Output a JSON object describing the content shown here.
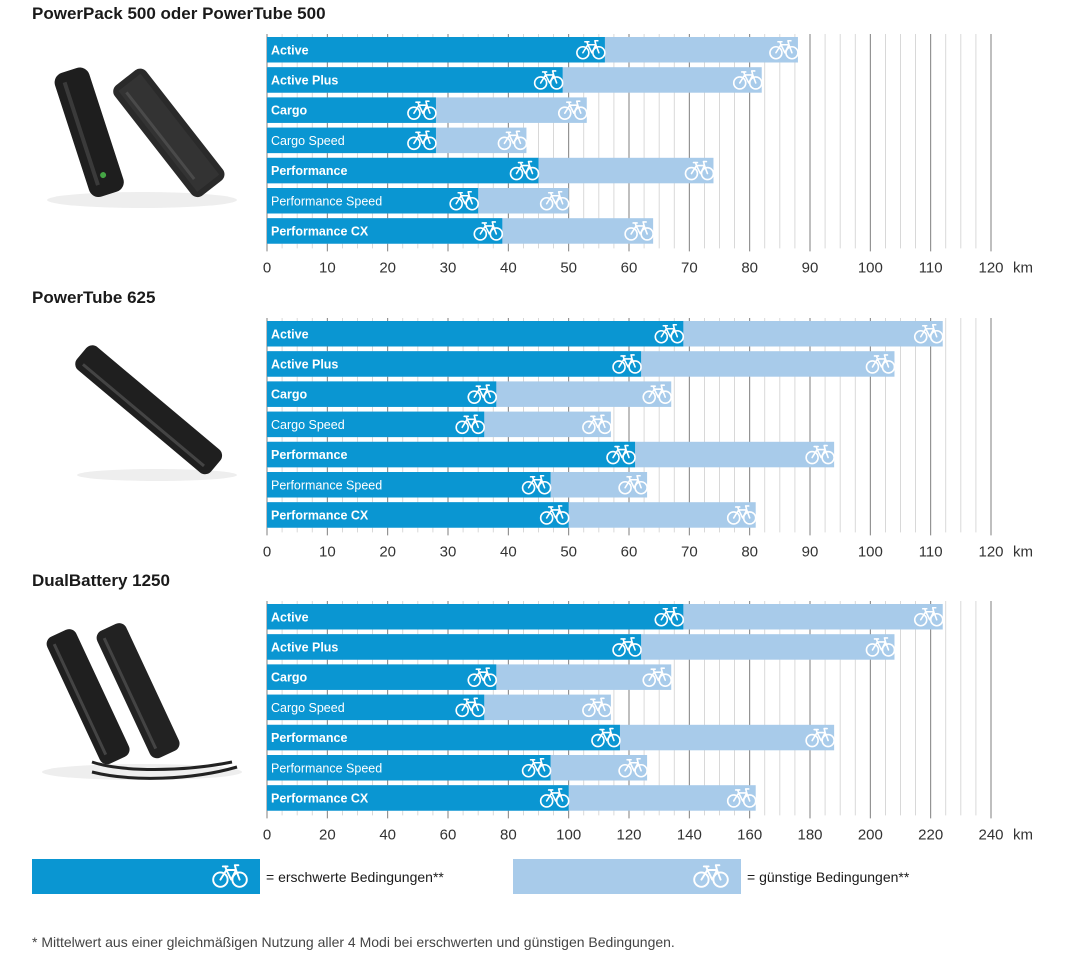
{
  "colors": {
    "hard": "#0a96d2",
    "easy": "#a8cbea",
    "grid": "#cfcfcf",
    "axis": "#7f7f7f"
  },
  "legend": {
    "hard_label": "= erschwerte Bedingungen**",
    "easy_label": "= günstige Bedingungen**",
    "icon": "bicycle-icon"
  },
  "footnote": "* Mittelwert aus einer gleichmäßigen Nutzung aller 4 Modi bei erschwerten und günstigen Bedingungen.",
  "chart_data": [
    {
      "type": "bar",
      "title": "PowerPack 500 oder PowerTube 500",
      "categories": [
        "Active",
        "Active Plus",
        "Cargo",
        "Cargo Speed",
        "Performance",
        "Performance Speed",
        "Performance CX"
      ],
      "category_bold": [
        true,
        true,
        true,
        false,
        true,
        false,
        true
      ],
      "series": [
        {
          "name": "erschwerte Bedingungen**",
          "values": [
            56,
            49,
            28,
            28,
            45,
            35,
            39
          ]
        },
        {
          "name": "günstige Bedingungen**",
          "values": [
            88,
            82,
            53,
            43,
            74,
            50,
            64
          ]
        }
      ],
      "xlim": [
        0,
        120
      ],
      "xticks": [
        0,
        10,
        20,
        30,
        40,
        50,
        60,
        70,
        80,
        90,
        100,
        110,
        120
      ],
      "unit": "km"
    },
    {
      "type": "bar",
      "title": "PowerTube 625",
      "categories": [
        "Active",
        "Active Plus",
        "Cargo",
        "Cargo Speed",
        "Performance",
        "Performance Speed",
        "Performance CX"
      ],
      "category_bold": [
        true,
        true,
        true,
        false,
        true,
        false,
        true
      ],
      "series": [
        {
          "name": "erschwerte Bedingungen**",
          "values": [
            69,
            62,
            38,
            36,
            61,
            47,
            50
          ]
        },
        {
          "name": "günstige Bedingungen**",
          "values": [
            112,
            104,
            67,
            57,
            94,
            63,
            81
          ]
        }
      ],
      "xlim": [
        0,
        120
      ],
      "xticks": [
        0,
        10,
        20,
        30,
        40,
        50,
        60,
        70,
        80,
        90,
        100,
        110,
        120
      ],
      "unit": "km"
    },
    {
      "type": "bar",
      "title": "DualBattery 1250",
      "categories": [
        "Active",
        "Active Plus",
        "Cargo",
        "Cargo Speed",
        "Performance",
        "Performance Speed",
        "Performance CX"
      ],
      "category_bold": [
        true,
        true,
        true,
        false,
        true,
        false,
        true
      ],
      "series": [
        {
          "name": "erschwerte Bedingungen**",
          "values": [
            138,
            124,
            76,
            72,
            117,
            94,
            100
          ]
        },
        {
          "name": "günstige Bedingungen**",
          "values": [
            224,
            208,
            134,
            114,
            188,
            126,
            162
          ]
        }
      ],
      "xlim": [
        0,
        240
      ],
      "xticks": [
        0,
        20,
        40,
        60,
        80,
        100,
        120,
        140,
        160,
        180,
        200,
        220,
        240
      ],
      "unit": "km"
    }
  ]
}
